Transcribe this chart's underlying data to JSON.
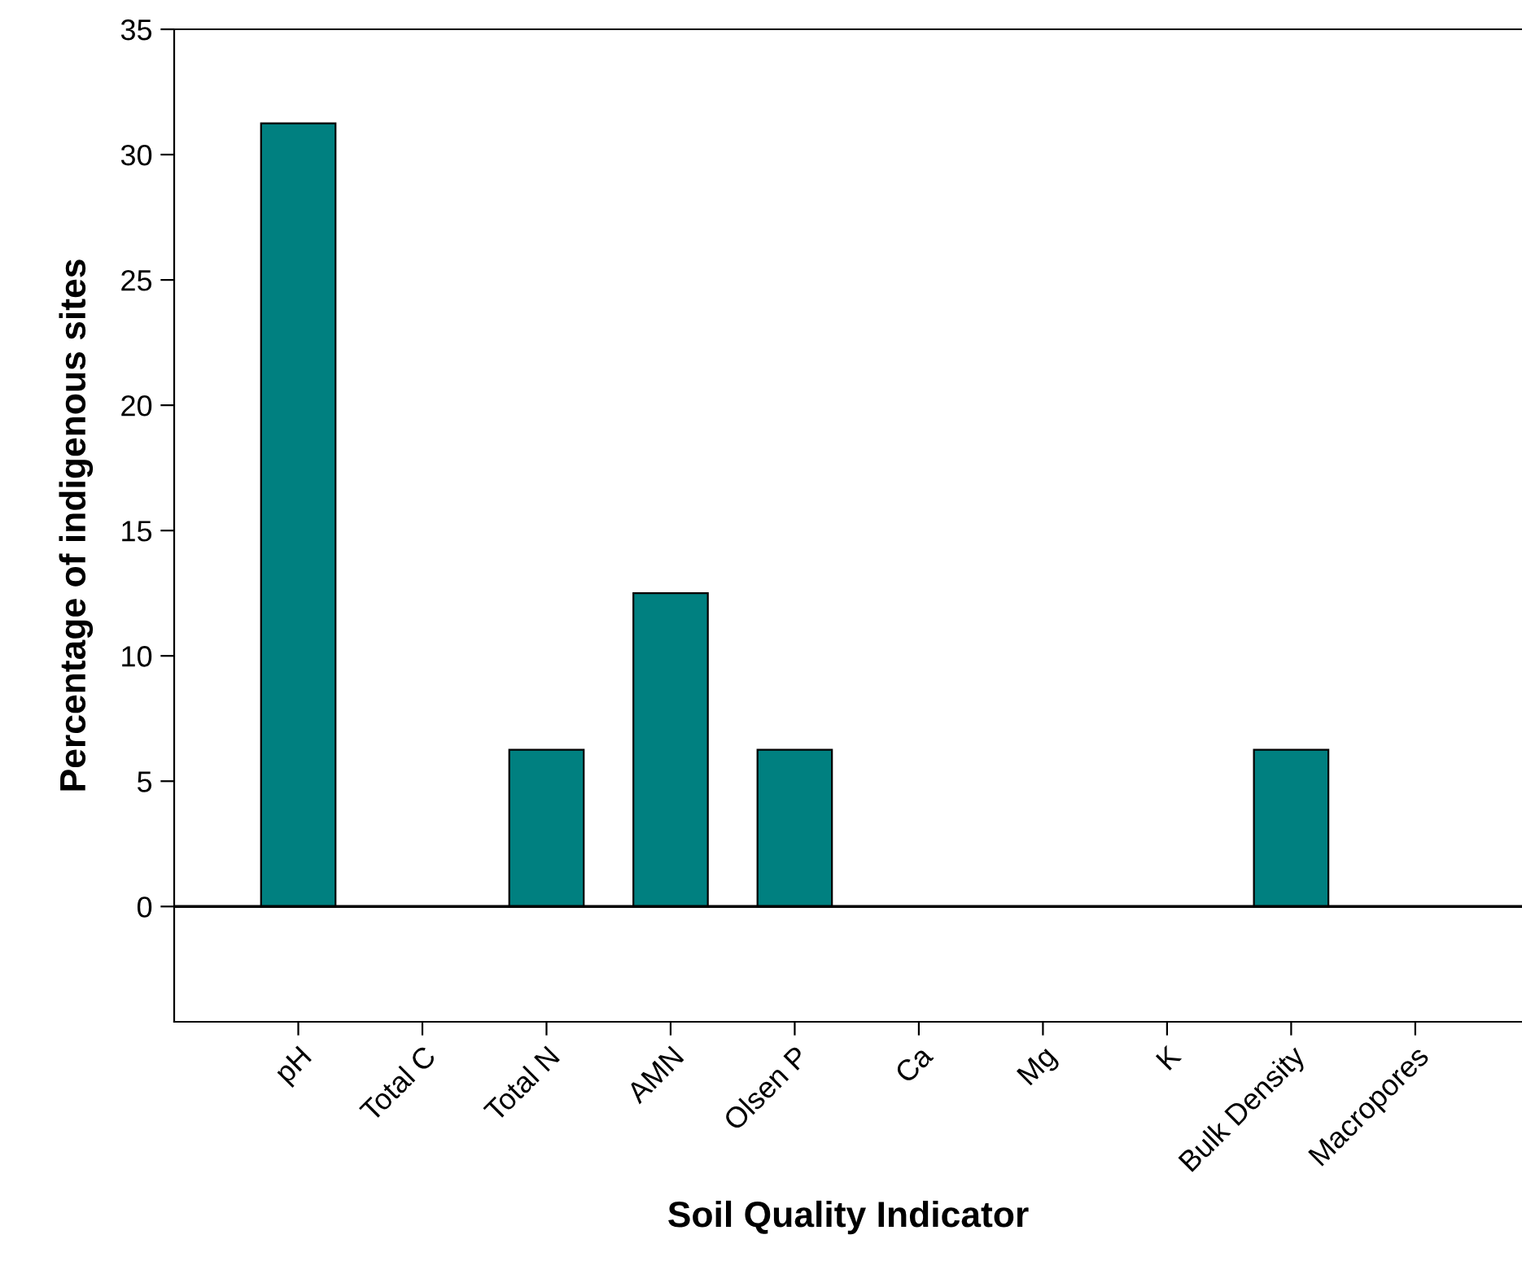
{
  "chart_data": {
    "type": "bar",
    "xlabel": "Soil Quality Indicator",
    "ylabel": "Percentage of indigenous sites",
    "categories": [
      "pH",
      "Total C",
      "Total N",
      "AMN",
      "Olsen P",
      "Ca",
      "Mg",
      "K",
      "Bulk Density",
      "Macropores"
    ],
    "values": [
      31.25,
      0,
      6.25,
      12.5,
      6.25,
      0,
      0,
      0,
      6.25,
      0
    ],
    "color": "#008080",
    "ylim": [
      -4.6,
      35
    ],
    "yticks": [
      0,
      5,
      10,
      15,
      20,
      25,
      30,
      35
    ],
    "ref_lines": [
      {
        "axis": "y",
        "value": 0,
        "color": "#000000"
      }
    ],
    "grid": false,
    "legend": false
  }
}
